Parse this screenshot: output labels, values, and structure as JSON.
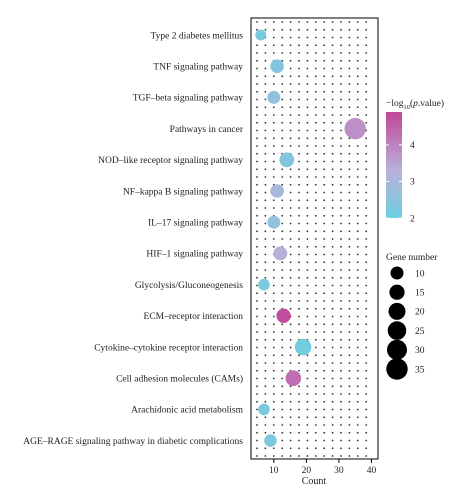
{
  "chart_data": {
    "type": "scatter",
    "title": "",
    "xlabel": "Count",
    "ylabel": "",
    "xlim": [
      3,
      42
    ],
    "x_ticks": [
      10,
      20,
      30,
      40
    ],
    "x_tick_labels": [
      "10",
      "20",
      "30",
      "40"
    ],
    "grid": "dotted",
    "categories": [
      "Type 2 diabetes mellitus",
      "TNF signaling pathway",
      "TGF–beta signaling pathway",
      "Pathways in cancer",
      "NOD–like receptor signaling pathway",
      "NF–kappa B signaling pathway",
      "IL–17 signaling pathway",
      "HIF–1 signaling pathway",
      "Glycolysis/Gluconeogenesis",
      "ECM–receptor interaction",
      "Cytokine–cytokine receptor interaction",
      "Cell adhesion molecules (CAMs)",
      "Arachidonic acid metabolism",
      "AGE–RAGE signaling pathway in diabetic complications"
    ],
    "points": [
      {
        "category": "Type 2 diabetes mellitus",
        "count": 6,
        "neglog10p": 2.2
      },
      {
        "category": "TNF signaling pathway",
        "count": 11,
        "neglog10p": 2.4
      },
      {
        "category": "TGF–beta signaling pathway",
        "count": 10,
        "neglog10p": 2.6
      },
      {
        "category": "Pathways in cancer",
        "count": 35,
        "neglog10p": 3.8
      },
      {
        "category": "NOD–like receptor signaling pathway",
        "count": 14,
        "neglog10p": 2.4
      },
      {
        "category": "NF–kappa B signaling pathway",
        "count": 11,
        "neglog10p": 3.0
      },
      {
        "category": "IL–17 signaling pathway",
        "count": 10,
        "neglog10p": 2.6
      },
      {
        "category": "HIF–1 signaling pathway",
        "count": 12,
        "neglog10p": 3.3
      },
      {
        "category": "Glycolysis/Gluconeogenesis",
        "count": 7,
        "neglog10p": 2.2
      },
      {
        "category": "ECM–receptor interaction",
        "count": 13,
        "neglog10p": 4.8
      },
      {
        "category": "Cytokine–cytokine receptor interaction",
        "count": 19,
        "neglog10p": 2.1
      },
      {
        "category": "Cell adhesion molecules (CAMs)",
        "count": 16,
        "neglog10p": 4.3
      },
      {
        "category": "Arachidonic acid metabolism",
        "count": 7,
        "neglog10p": 2.2
      },
      {
        "category": "AGE–RAGE signaling pathway in diabetic complications",
        "count": 9,
        "neglog10p": 2.3
      }
    ],
    "color_legend": {
      "title_prefix": "−log",
      "title_sub": "10",
      "title_suffix": "(",
      "title_italic": "p",
      "title_end": ".value)",
      "ticks": [
        2,
        3,
        4
      ],
      "tick_labels": [
        "2",
        "3",
        "4"
      ],
      "range": [
        2,
        4.9
      ],
      "low_color": "#6dcfe0",
      "mid_color": "#b9b0da",
      "high_color": "#c2469a"
    },
    "size_legend": {
      "title": "Gene number",
      "values": [
        10,
        15,
        20,
        25,
        30,
        35
      ],
      "labels": [
        "10",
        "15",
        "20",
        "25",
        "30",
        "35"
      ],
      "color": "#000000"
    },
    "legend_position": "right"
  }
}
